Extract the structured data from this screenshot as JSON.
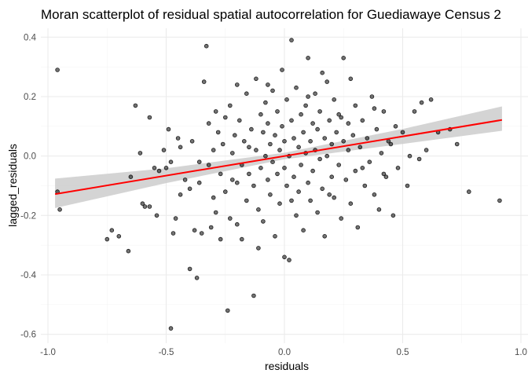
{
  "chart_data": {
    "type": "scatter",
    "title": "Moran scatterplot of residual spatial autocorrelation for Guediawaye Census 2",
    "xlabel": "residuals",
    "ylabel": "lagged_residuals",
    "xlim": [
      -1.03,
      1.03
    ],
    "ylim": [
      -0.63,
      0.43
    ],
    "x_ticks": [
      -1.0,
      -0.5,
      0.0,
      0.5,
      1.0
    ],
    "x_tick_labels": [
      "-1.0",
      "-0.5",
      "0.0",
      "0.5",
      "1.0"
    ],
    "y_ticks": [
      -0.6,
      -0.4,
      -0.2,
      0.0,
      0.2,
      0.4
    ],
    "y_tick_labels": [
      "-0.6",
      "-0.4",
      "-0.2",
      "0.0",
      "0.2",
      "0.4"
    ],
    "grid": true,
    "theme": "minimal",
    "colors": {
      "points": "#000000",
      "fit_line": "#ff0000",
      "ribbon": "#cccccc"
    },
    "fit": {
      "type": "linear",
      "x_range": [
        -0.97,
        0.92
      ],
      "intercept": 0.0,
      "slope": 0.132,
      "ci_band": [
        {
          "x": -0.97,
          "lower": -0.175,
          "upper": -0.076
        },
        {
          "x": -0.5,
          "lower": -0.091,
          "upper": -0.041
        },
        {
          "x": 0.0,
          "lower": -0.011,
          "upper": 0.011
        },
        {
          "x": 0.5,
          "lower": 0.041,
          "upper": 0.091
        },
        {
          "x": 0.92,
          "lower": 0.085,
          "upper": 0.167
        }
      ]
    },
    "points": [
      [
        -0.96,
        0.29
      ],
      [
        -0.96,
        -0.12
      ],
      [
        -0.95,
        -0.18
      ],
      [
        -0.75,
        -0.28
      ],
      [
        -0.73,
        -0.25
      ],
      [
        -0.7,
        -0.27
      ],
      [
        -0.66,
        -0.32
      ],
      [
        -0.65,
        -0.07
      ],
      [
        -0.63,
        0.17
      ],
      [
        -0.61,
        0.01
      ],
      [
        -0.6,
        -0.16
      ],
      [
        -0.59,
        -0.17
      ],
      [
        -0.57,
        0.13
      ],
      [
        -0.55,
        -0.04
      ],
      [
        -0.54,
        -0.2
      ],
      [
        -0.53,
        -0.05
      ],
      [
        -0.51,
        0.02
      ],
      [
        -0.5,
        -0.04
      ],
      [
        -0.49,
        0.09
      ],
      [
        -0.48,
        -0.02
      ],
      [
        -0.47,
        -0.26
      ],
      [
        -0.46,
        -0.21
      ],
      [
        -0.45,
        0.06
      ],
      [
        -0.44,
        -0.13
      ],
      [
        -0.42,
        -0.08
      ],
      [
        -0.4,
        -0.11
      ],
      [
        -0.4,
        -0.38
      ],
      [
        -0.39,
        0.05
      ],
      [
        -0.38,
        -0.25
      ],
      [
        -0.37,
        -0.41
      ],
      [
        -0.36,
        -0.09
      ],
      [
        -0.35,
        -0.26
      ],
      [
        -0.34,
        0.25
      ],
      [
        -0.33,
        0.37
      ],
      [
        -0.32,
        0.11
      ],
      [
        -0.32,
        -0.03
      ],
      [
        -0.31,
        -0.24
      ],
      [
        -0.3,
        0.02
      ],
      [
        -0.29,
        0.15
      ],
      [
        -0.29,
        -0.19
      ],
      [
        -0.28,
        0.08
      ],
      [
        -0.27,
        -0.06
      ],
      [
        -0.26,
        0.04
      ],
      [
        -0.25,
        0.13
      ],
      [
        -0.25,
        -0.12
      ],
      [
        -0.24,
        -0.52
      ],
      [
        -0.23,
        0.17
      ],
      [
        -0.23,
        -0.21
      ],
      [
        -0.22,
        0.01
      ],
      [
        -0.21,
        0.07
      ],
      [
        -0.2,
        -0.09
      ],
      [
        -0.2,
        -0.23
      ],
      [
        -0.19,
        0.12
      ],
      [
        -0.18,
        -0.03
      ],
      [
        -0.18,
        -0.28
      ],
      [
        -0.17,
        0.05
      ],
      [
        -0.16,
        -0.15
      ],
      [
        -0.16,
        0.21
      ],
      [
        -0.15,
        -0.06
      ],
      [
        -0.14,
        0.09
      ],
      [
        -0.13,
        -0.1
      ],
      [
        -0.13,
        -0.47
      ],
      [
        -0.12,
        0.26
      ],
      [
        -0.12,
        0.02
      ],
      [
        -0.11,
        -0.18
      ],
      [
        -0.1,
        0.14
      ],
      [
        -0.1,
        -0.04
      ],
      [
        -0.09,
        0.08
      ],
      [
        -0.09,
        -0.22
      ],
      [
        -0.08,
        0.0
      ],
      [
        -0.08,
        0.18
      ],
      [
        -0.07,
        -0.08
      ],
      [
        -0.07,
        0.11
      ],
      [
        -0.06,
        -0.13
      ],
      [
        -0.06,
        0.04
      ],
      [
        -0.05,
        0.22
      ],
      [
        -0.05,
        -0.02
      ],
      [
        -0.04,
        -0.27
      ],
      [
        -0.04,
        0.07
      ],
      [
        -0.03,
        0.15
      ],
      [
        -0.03,
        -0.06
      ],
      [
        -0.02,
        0.02
      ],
      [
        -0.02,
        -0.16
      ],
      [
        -0.01,
        0.29
      ],
      [
        -0.01,
        0.1
      ],
      [
        0.0,
        -0.04
      ],
      [
        0.0,
        0.05
      ],
      [
        0.01,
        -0.1
      ],
      [
        0.01,
        0.19
      ],
      [
        0.02,
        0.0
      ],
      [
        0.02,
        -0.35
      ],
      [
        0.03,
        0.39
      ],
      [
        0.03,
        0.12
      ],
      [
        0.04,
        -0.07
      ],
      [
        0.04,
        0.06
      ],
      [
        0.05,
        -0.2
      ],
      [
        0.05,
        0.23
      ],
      [
        0.06,
        0.03
      ],
      [
        0.06,
        -0.12
      ],
      [
        0.07,
        0.14
      ],
      [
        0.07,
        -0.03
      ],
      [
        0.08,
        0.08
      ],
      [
        0.08,
        -0.25
      ],
      [
        0.09,
        0.17
      ],
      [
        0.09,
        0.01
      ],
      [
        0.1,
        -0.09
      ],
      [
        0.1,
        0.33
      ],
      [
        0.11,
        0.05
      ],
      [
        0.11,
        -0.15
      ],
      [
        0.12,
        0.11
      ],
      [
        0.12,
        -0.05
      ],
      [
        0.13,
        0.21
      ],
      [
        0.13,
        0.02
      ],
      [
        0.14,
        -0.19
      ],
      [
        0.14,
        0.09
      ],
      [
        0.15,
        -0.01
      ],
      [
        0.15,
        0.15
      ],
      [
        0.16,
        -0.11
      ],
      [
        0.17,
        0.06
      ],
      [
        0.17,
        -0.27
      ],
      [
        0.18,
        0.25
      ],
      [
        0.18,
        0.0
      ],
      [
        0.19,
        0.12
      ],
      [
        0.2,
        -0.07
      ],
      [
        0.2,
        0.04
      ],
      [
        0.21,
        0.19
      ],
      [
        0.21,
        -0.14
      ],
      [
        0.22,
        0.08
      ],
      [
        0.23,
        -0.03
      ],
      [
        0.23,
        0.14
      ],
      [
        0.24,
        -0.21
      ],
      [
        0.25,
        0.05
      ],
      [
        0.25,
        0.33
      ],
      [
        0.26,
        -0.08
      ],
      [
        0.27,
        0.11
      ],
      [
        0.27,
        0.02
      ],
      [
        0.28,
        -0.16
      ],
      [
        0.29,
        0.07
      ],
      [
        0.3,
        -0.05
      ],
      [
        0.3,
        0.17
      ],
      [
        0.31,
        -0.24
      ],
      [
        0.32,
        0.03
      ],
      [
        0.33,
        0.12
      ],
      [
        0.34,
        -0.1
      ],
      [
        0.35,
        0.06
      ],
      [
        0.36,
        -0.02
      ],
      [
        0.37,
        0.2
      ],
      [
        0.38,
        -0.13
      ],
      [
        0.39,
        0.09
      ],
      [
        0.4,
        -0.18
      ],
      [
        0.41,
        0.01
      ],
      [
        0.42,
        0.15
      ],
      [
        0.43,
        -0.07
      ],
      [
        0.44,
        0.05
      ],
      [
        0.46,
        -0.2
      ],
      [
        0.47,
        0.1
      ],
      [
        0.48,
        -0.04
      ],
      [
        0.5,
        0.08
      ],
      [
        0.52,
        -0.1
      ],
      [
        0.55,
        0.15
      ],
      [
        0.57,
        -0.01
      ],
      [
        0.58,
        0.18
      ],
      [
        0.6,
        0.02
      ],
      [
        0.62,
        0.19
      ],
      [
        0.65,
        0.08
      ],
      [
        0.7,
        0.09
      ],
      [
        0.73,
        0.04
      ],
      [
        0.78,
        -0.12
      ],
      [
        0.91,
        -0.15
      ],
      [
        -0.57,
        -0.17
      ],
      [
        -0.48,
        -0.58
      ],
      [
        -0.27,
        -0.28
      ],
      [
        -0.2,
        0.24
      ],
      [
        -0.11,
        -0.31
      ],
      [
        0.0,
        -0.34
      ],
      [
        0.16,
        0.28
      ],
      [
        0.28,
        0.26
      ],
      [
        0.42,
        -0.06
      ],
      [
        0.53,
        0.0
      ],
      [
        -0.44,
        0.03
      ],
      [
        -0.36,
        -0.02
      ],
      [
        -0.3,
        -0.14
      ],
      [
        -0.22,
        -0.08
      ],
      [
        -0.15,
        0.03
      ],
      [
        -0.07,
        0.24
      ],
      [
        0.03,
        -0.15
      ],
      [
        0.1,
        0.2
      ],
      [
        0.19,
        -0.13
      ],
      [
        0.24,
        0.13
      ],
      [
        0.33,
        -0.04
      ],
      [
        0.38,
        0.16
      ],
      [
        0.45,
        0.04
      ]
    ]
  }
}
